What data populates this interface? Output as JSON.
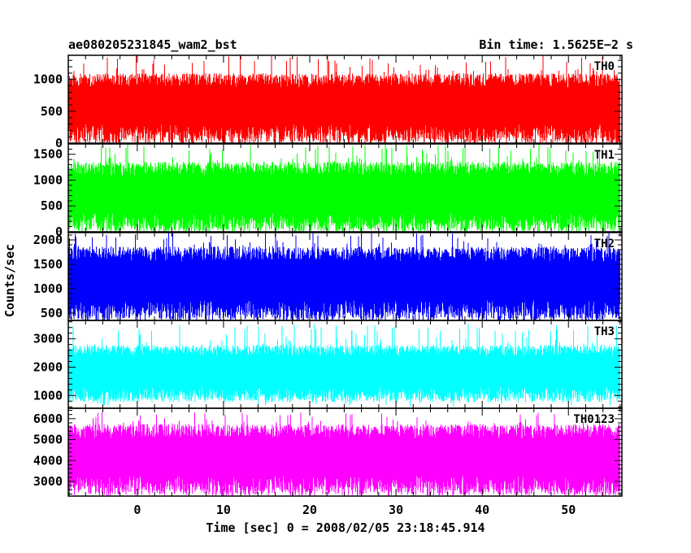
{
  "header": {
    "left_title": "ae080205231845_wam2_bst",
    "right_title": "Bin time: 1.5625E−2 s"
  },
  "chart_data": {
    "type": "line",
    "xlabel": "Time [sec] 0 = 2008/02/05 23:18:45.914",
    "ylabel": "Counts/sec",
    "x_range": [
      -8.0,
      56.2
    ],
    "x_ticks": [
      0,
      10,
      20,
      30,
      40,
      50
    ],
    "x_tick_labels": [
      "0",
      "10",
      "20",
      "30",
      "40",
      "50"
    ],
    "x_data_range": [
      -8.0,
      56.0
    ],
    "bin_time_s": 0.015625,
    "series": [
      {
        "name": "TH0",
        "color": "#ff0000",
        "ylim": [
          0,
          1380
        ],
        "y_ticks": [
          0,
          500,
          1000
        ],
        "y_tick_labels": [
          "0",
          "500",
          "1000"
        ],
        "typical_low": 150,
        "typical_high": 1050,
        "extreme_min": 10,
        "extreme_max": 1380
      },
      {
        "name": "TH1",
        "color": "#00ff00",
        "ylim": [
          0,
          1700
        ],
        "y_ticks": [
          0,
          500,
          1000,
          1500
        ],
        "y_tick_labels": [
          "0",
          "500",
          "1000",
          "1500"
        ],
        "typical_low": 180,
        "typical_high": 1300,
        "extreme_min": 0,
        "extreme_max": 1700
      },
      {
        "name": "TH2",
        "color": "#0000ff",
        "ylim": [
          350,
          2150
        ],
        "y_ticks": [
          500,
          1000,
          1500,
          2000
        ],
        "y_tick_labels": [
          "500",
          "1000",
          "1500",
          "2000"
        ],
        "typical_low": 550,
        "typical_high": 1800,
        "extreme_min": 380,
        "extreme_max": 2150
      },
      {
        "name": "TH3",
        "color": "#00ffff",
        "ylim": [
          550,
          3650
        ],
        "y_ticks": [
          1000,
          2000,
          3000
        ],
        "y_tick_labels": [
          "1000",
          "2000",
          "3000"
        ],
        "typical_low": 1050,
        "typical_high": 2700,
        "extreme_min": 600,
        "extreme_max": 3550
      },
      {
        "name": "TH0123",
        "color": "#ff00ff",
        "ylim": [
          2300,
          6500
        ],
        "y_ticks": [
          3000,
          4000,
          5000,
          6000
        ],
        "y_tick_labels": [
          "3000",
          "4000",
          "5000",
          "6000"
        ],
        "typical_low": 2800,
        "typical_high": 5600,
        "extreme_min": 2400,
        "extreme_max": 6300
      }
    ]
  }
}
